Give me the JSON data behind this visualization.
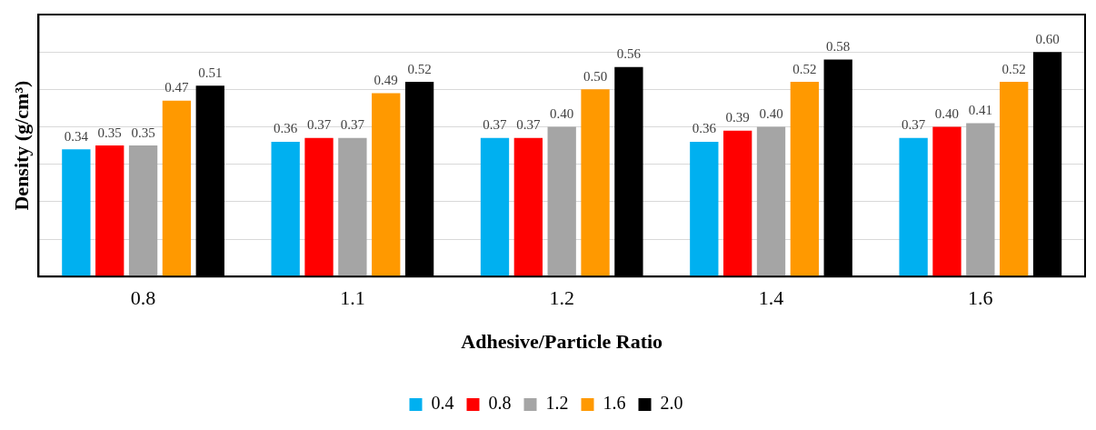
{
  "chart_data": {
    "type": "bar",
    "xlabel": "Adhesive/Particle Ratio",
    "ylabel": "Density (g/cm³)",
    "categories": [
      "0.8",
      "1.1",
      "1.2",
      "1.4",
      "1.6"
    ],
    "series": [
      {
        "name": "0.4",
        "color": "#00b0f0",
        "values": [
          0.34,
          0.36,
          0.37,
          0.36,
          0.37
        ],
        "value_labels": [
          "0.34",
          "0.36",
          "0.37",
          "0.36",
          "0.37"
        ]
      },
      {
        "name": "0.8",
        "color": "#ff0000",
        "values": [
          0.35,
          0.37,
          0.37,
          0.39,
          0.4
        ],
        "value_labels": [
          "0.35",
          "0.37",
          "0.37",
          "0.39",
          "0.40"
        ]
      },
      {
        "name": "1.2",
        "color": "#a5a5a5",
        "values": [
          0.35,
          0.37,
          0.4,
          0.4,
          0.41
        ],
        "value_labels": [
          "0.35",
          "0.37",
          "0.40",
          "0.40",
          "0.41"
        ]
      },
      {
        "name": "1.6",
        "color": "#ff9900",
        "values": [
          0.47,
          0.49,
          0.5,
          0.52,
          0.52
        ],
        "value_labels": [
          "0.47",
          "0.49",
          "0.50",
          "0.52",
          "0.52"
        ]
      },
      {
        "name": "2.0",
        "color": "#000000",
        "values": [
          0.51,
          0.52,
          0.56,
          0.58,
          0.6
        ],
        "value_labels": [
          "0.51",
          "0.52",
          "0.56",
          "0.58",
          "0.60"
        ]
      }
    ],
    "ylim": [
      0,
      0.7
    ],
    "yticks": [
      {
        "value": 0,
        "label": null
      },
      {
        "value": 0.1,
        "label": null
      },
      {
        "value": 0.2,
        "label": null
      },
      {
        "value": 0.3,
        "label": null
      },
      {
        "value": 0.4,
        "label": null
      },
      {
        "value": 0.5,
        "label": null
      },
      {
        "value": 0.6,
        "label": null
      },
      {
        "value": 0.7,
        "label": null
      }
    ],
    "tick_labels": "x",
    "grid": "y",
    "legend": "bottom"
  }
}
